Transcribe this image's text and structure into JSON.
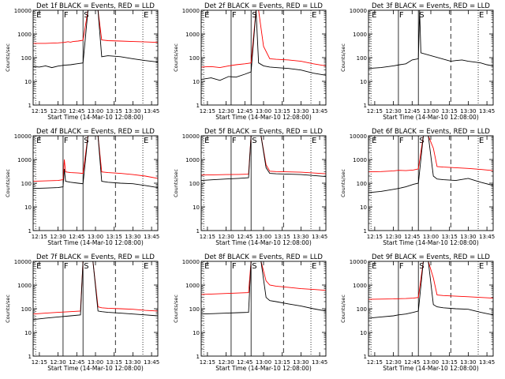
{
  "figure": {
    "xlabel": "Start Time (14-Mar-10 12:08:00)",
    "ylabel": "Counts/sec"
  },
  "chart_data": [
    {
      "type": "line",
      "title": "Det 1f BLACK = Events, RED = LLD",
      "yscale": "log",
      "ylim": [
        1,
        10000
      ],
      "xticks": [
        "12:15",
        "12:30",
        "12:45",
        "13:00",
        "13:15",
        "13:30",
        "13:45"
      ],
      "xlim": [
        0,
        100
      ],
      "markers": [
        {
          "label": "E",
          "x": 2,
          "style": "dotted"
        },
        {
          "label": "F",
          "x": 24,
          "style": "solid"
        },
        {
          "label": "S",
          "x": 40,
          "style": "solid"
        },
        {
          "label": "",
          "x": 66,
          "style": "dashed"
        },
        {
          "label": "E",
          "x": 88,
          "style": "dotted"
        }
      ],
      "series": [
        {
          "color": "#ff0000",
          "x": [
            0,
            10,
            20,
            25,
            28,
            30,
            32,
            36,
            38,
            40,
            44,
            48,
            52,
            55,
            60,
            70,
            80,
            90,
            100
          ],
          "y": [
            400,
            400,
            420,
            440,
            470,
            450,
            480,
            500,
            520,
            540,
            10000,
            10000,
            10000,
            560,
            520,
            500,
            480,
            460,
            440
          ]
        },
        {
          "color": "#000000",
          "x": [
            0,
            5,
            10,
            15,
            20,
            25,
            30,
            35,
            40,
            44,
            48,
            52,
            55,
            60,
            70,
            80,
            90,
            100
          ],
          "y": [
            42,
            40,
            45,
            38,
            44,
            48,
            50,
            55,
            60,
            10000,
            10000,
            10000,
            110,
            120,
            110,
            90,
            75,
            65
          ]
        }
      ]
    },
    {
      "type": "line",
      "title": "Det 2f BLACK = Events, RED = LLD",
      "yscale": "log",
      "ylim": [
        1,
        10000
      ],
      "xticks": [
        "12:15",
        "12:30",
        "12:45",
        "13:00",
        "13:15",
        "13:30",
        "13:45"
      ],
      "xlim": [
        0,
        100
      ],
      "markers": [
        {
          "label": "E",
          "x": 2,
          "style": "dotted"
        },
        {
          "label": "F",
          "x": 24,
          "style": "solid"
        },
        {
          "label": "S",
          "x": 40,
          "style": "solid"
        },
        {
          "label": "",
          "x": 66,
          "style": "dashed"
        },
        {
          "label": "E",
          "x": 88,
          "style": "dotted"
        }
      ],
      "series": [
        {
          "color": "#ff0000",
          "x": [
            0,
            8,
            15,
            22,
            28,
            35,
            40,
            44,
            46,
            50,
            55,
            60,
            70,
            80,
            90,
            100
          ],
          "y": [
            40,
            42,
            38,
            45,
            50,
            55,
            60,
            10000,
            10000,
            300,
            90,
            85,
            80,
            70,
            55,
            45
          ]
        },
        {
          "color": "#000000",
          "x": [
            0,
            8,
            15,
            22,
            28,
            35,
            40,
            44,
            46,
            50,
            55,
            60,
            70,
            80,
            90,
            100
          ],
          "y": [
            12,
            14,
            11,
            16,
            15,
            20,
            25,
            10000,
            60,
            45,
            40,
            38,
            35,
            30,
            22,
            18
          ]
        }
      ]
    },
    {
      "type": "line",
      "title": "Det 3f BLACK = Events, RED = LLD",
      "yscale": "log",
      "ylim": [
        1,
        10000
      ],
      "xticks": [
        "12:15",
        "12:30",
        "12:45",
        "13:00",
        "13:15",
        "13:30",
        "13:45"
      ],
      "xlim": [
        0,
        100
      ],
      "markers": [
        {
          "label": "E",
          "x": 2,
          "style": "dotted"
        },
        {
          "label": "F",
          "x": 24,
          "style": "solid"
        },
        {
          "label": "S",
          "x": 40,
          "style": "solid"
        },
        {
          "label": "",
          "x": 66,
          "style": "dashed"
        },
        {
          "label": "E",
          "x": 88,
          "style": "dotted"
        }
      ],
      "series": [
        {
          "color": "#000000",
          "x": [
            0,
            10,
            20,
            25,
            30,
            35,
            40,
            41,
            42,
            66,
            70,
            75,
            80,
            85,
            90,
            95,
            100
          ],
          "y": [
            35,
            38,
            45,
            50,
            55,
            80,
            90,
            10000,
            160,
            70,
            75,
            80,
            70,
            65,
            60,
            50,
            45
          ]
        }
      ]
    },
    {
      "type": "line",
      "title": "Det 4f BLACK = Events, RED = LLD",
      "yscale": "log",
      "ylim": [
        1,
        10000
      ],
      "xticks": [
        "12:15",
        "12:30",
        "12:45",
        "13:00",
        "13:15",
        "13:30",
        "13:45"
      ],
      "xlim": [
        0,
        100
      ],
      "markers": [
        {
          "label": "E",
          "x": 2,
          "style": "dotted"
        },
        {
          "label": "F",
          "x": 24,
          "style": "solid"
        },
        {
          "label": "S",
          "x": 40,
          "style": "solid"
        },
        {
          "label": "",
          "x": 66,
          "style": "dashed"
        },
        {
          "label": "E",
          "x": 88,
          "style": "dotted"
        }
      ],
      "series": [
        {
          "color": "#ff0000",
          "x": [
            0,
            10,
            20,
            24,
            25,
            26,
            30,
            36,
            40,
            44,
            48,
            52,
            55,
            60,
            70,
            80,
            90,
            100
          ],
          "y": [
            120,
            125,
            130,
            140,
            1000,
            300,
            280,
            270,
            260,
            10000,
            10000,
            10000,
            300,
            280,
            260,
            230,
            200,
            160
          ]
        },
        {
          "color": "#000000",
          "x": [
            0,
            10,
            20,
            24,
            25,
            26,
            30,
            36,
            40,
            44,
            48,
            52,
            55,
            60,
            70,
            80,
            90,
            100
          ],
          "y": [
            60,
            62,
            65,
            70,
            400,
            120,
            110,
            100,
            95,
            10000,
            10000,
            10000,
            120,
            110,
            100,
            95,
            80,
            65
          ]
        }
      ]
    },
    {
      "type": "line",
      "title": "Det 5f BLACK = Events, RED = LLD",
      "yscale": "log",
      "ylim": [
        1,
        10000
      ],
      "xticks": [
        "12:15",
        "12:30",
        "12:45",
        "13:00",
        "13:15",
        "13:30",
        "13:45"
      ],
      "xlim": [
        0,
        100
      ],
      "markers": [
        {
          "label": "E",
          "x": 2,
          "style": "dotted"
        },
        {
          "label": "F",
          "x": 24,
          "style": "solid"
        },
        {
          "label": "S",
          "x": 40,
          "style": "solid"
        },
        {
          "label": "",
          "x": 66,
          "style": "dashed"
        },
        {
          "label": "E",
          "x": 88,
          "style": "dotted"
        }
      ],
      "series": [
        {
          "color": "#ff0000",
          "x": [
            0,
            10,
            20,
            30,
            38,
            40,
            44,
            48,
            52,
            55,
            60,
            70,
            80,
            90,
            100
          ],
          "y": [
            220,
            225,
            230,
            235,
            240,
            10000,
            10000,
            10000,
            600,
            320,
            310,
            300,
            290,
            270,
            250
          ]
        },
        {
          "color": "#000000",
          "x": [
            0,
            10,
            20,
            30,
            38,
            40,
            44,
            48,
            52,
            55,
            60,
            70,
            80,
            90,
            100
          ],
          "y": [
            130,
            140,
            150,
            160,
            170,
            10000,
            10000,
            10000,
            450,
            260,
            250,
            240,
            230,
            210,
            190
          ]
        }
      ]
    },
    {
      "type": "line",
      "title": "Det 6f BLACK = Events, RED = LLD",
      "yscale": "log",
      "ylim": [
        1,
        10000
      ],
      "xticks": [
        "12:15",
        "12:30",
        "12:45",
        "13:00",
        "13:15",
        "13:30",
        "13:45"
      ],
      "xlim": [
        0,
        100
      ],
      "markers": [
        {
          "label": "E",
          "x": 2,
          "style": "dotted"
        },
        {
          "label": "F",
          "x": 24,
          "style": "solid"
        },
        {
          "label": "S",
          "x": 40,
          "style": "solid"
        },
        {
          "label": "",
          "x": 66,
          "style": "dashed"
        },
        {
          "label": "E",
          "x": 88,
          "style": "dotted"
        }
      ],
      "series": [
        {
          "color": "#ff0000",
          "x": [
            0,
            10,
            20,
            24,
            30,
            36,
            40,
            44,
            48,
            52,
            55,
            60,
            70,
            80,
            90,
            100
          ],
          "y": [
            300,
            310,
            330,
            350,
            340,
            360,
            400,
            10000,
            10000,
            3000,
            500,
            480,
            450,
            420,
            380,
            340
          ]
        },
        {
          "color": "#000000",
          "x": [
            0,
            10,
            20,
            24,
            30,
            36,
            40,
            44,
            48,
            52,
            55,
            60,
            70,
            80,
            90,
            100
          ],
          "y": [
            40,
            45,
            55,
            60,
            70,
            90,
            100,
            10000,
            10000,
            200,
            150,
            140,
            130,
            160,
            110,
            80
          ]
        }
      ]
    },
    {
      "type": "line",
      "title": "Det 7f BLACK = Events, RED = LLD",
      "yscale": "log",
      "ylim": [
        1,
        10000
      ],
      "xticks": [
        "12:15",
        "12:30",
        "12:45",
        "13:00",
        "13:15",
        "13:30",
        "13:45"
      ],
      "xlim": [
        0,
        100
      ],
      "markers": [
        {
          "label": "E",
          "x": 2,
          "style": "dotted"
        },
        {
          "label": "F",
          "x": 24,
          "style": "solid"
        },
        {
          "label": "S",
          "x": 40,
          "style": "solid"
        },
        {
          "label": "",
          "x": 66,
          "style": "dashed"
        },
        {
          "label": "E",
          "x": 88,
          "style": "dotted"
        }
      ],
      "series": [
        {
          "color": "#ff0000",
          "x": [
            0,
            10,
            20,
            30,
            38,
            40,
            44,
            48,
            52,
            55,
            60,
            70,
            80,
            90,
            100
          ],
          "y": [
            60,
            65,
            70,
            75,
            80,
            10000,
            10000,
            10000,
            120,
            110,
            105,
            100,
            95,
            85,
            80
          ]
        },
        {
          "color": "#000000",
          "x": [
            0,
            10,
            20,
            30,
            38,
            40,
            44,
            48,
            52,
            55,
            60,
            70,
            80,
            90,
            100
          ],
          "y": [
            35,
            40,
            45,
            50,
            55,
            10000,
            10000,
            10000,
            80,
            75,
            70,
            65,
            60,
            55,
            50
          ]
        }
      ]
    },
    {
      "type": "line",
      "title": "Det 8f BLACK = Events, RED = LLD",
      "yscale": "log",
      "ylim": [
        1,
        10000
      ],
      "xticks": [
        "12:15",
        "12:30",
        "12:45",
        "13:00",
        "13:15",
        "13:30",
        "13:45"
      ],
      "xlim": [
        0,
        100
      ],
      "markers": [
        {
          "label": "E",
          "x": 2,
          "style": "dotted"
        },
        {
          "label": "F",
          "x": 24,
          "style": "solid"
        },
        {
          "label": "S",
          "x": 40,
          "style": "solid"
        },
        {
          "label": "",
          "x": 66,
          "style": "dashed"
        },
        {
          "label": "E",
          "x": 88,
          "style": "dotted"
        }
      ],
      "series": [
        {
          "color": "#ff0000",
          "x": [
            0,
            10,
            20,
            30,
            38,
            40,
            44,
            48,
            52,
            55,
            60,
            70,
            80,
            90,
            100
          ],
          "y": [
            400,
            420,
            440,
            460,
            480,
            10000,
            10000,
            10000,
            1500,
            1000,
            900,
            800,
            700,
            650,
            600
          ]
        },
        {
          "color": "#000000",
          "x": [
            0,
            10,
            20,
            30,
            38,
            40,
            44,
            48,
            52,
            55,
            60,
            70,
            80,
            90,
            100
          ],
          "y": [
            60,
            62,
            65,
            68,
            70,
            10000,
            10000,
            10000,
            300,
            220,
            200,
            160,
            130,
            100,
            80
          ]
        }
      ]
    },
    {
      "type": "line",
      "title": "Det 9f BLACK = Events, RED = LLD",
      "yscale": "log",
      "ylim": [
        1,
        10000
      ],
      "xticks": [
        "12:15",
        "12:30",
        "12:45",
        "13:00",
        "13:15",
        "13:30",
        "13:45"
      ],
      "xlim": [
        0,
        100
      ],
      "markers": [
        {
          "label": "E",
          "x": 2,
          "style": "dotted"
        },
        {
          "label": "F",
          "x": 24,
          "style": "solid"
        },
        {
          "label": "S",
          "x": 40,
          "style": "solid"
        },
        {
          "label": "",
          "x": 66,
          "style": "dashed"
        },
        {
          "label": "E",
          "x": 88,
          "style": "dotted"
        }
      ],
      "series": [
        {
          "color": "#ff0000",
          "x": [
            0,
            10,
            20,
            24,
            30,
            36,
            40,
            44,
            48,
            52,
            55,
            60,
            70,
            80,
            90,
            100
          ],
          "y": [
            250,
            255,
            260,
            265,
            270,
            280,
            300,
            10000,
            10000,
            2000,
            380,
            360,
            340,
            320,
            300,
            280
          ]
        },
        {
          "color": "#000000",
          "x": [
            0,
            10,
            20,
            24,
            30,
            36,
            40,
            44,
            48,
            52,
            55,
            60,
            70,
            80,
            90,
            100
          ],
          "y": [
            40,
            45,
            50,
            55,
            60,
            70,
            80,
            10000,
            10000,
            150,
            120,
            110,
            100,
            95,
            70,
            55
          ]
        }
      ]
    }
  ]
}
